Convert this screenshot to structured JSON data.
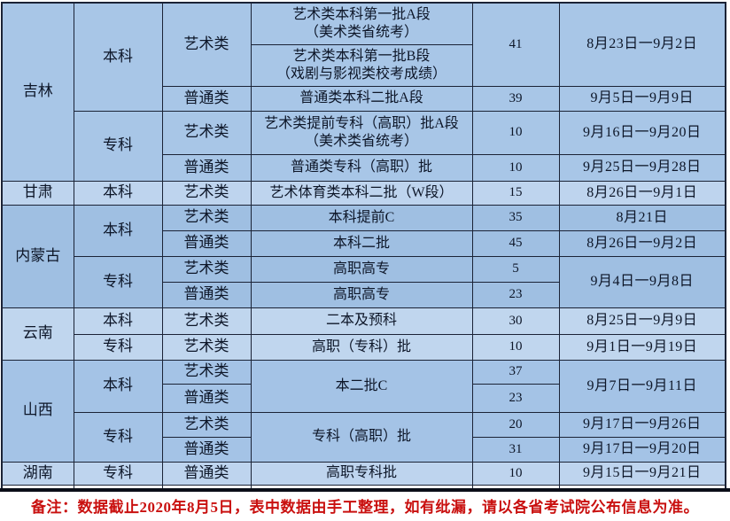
{
  "colors": {
    "jilin": "#a8c6e7",
    "gansu": "#bed4ee",
    "neimenggu": "#9fbfe2",
    "yunnan": "#c0d6ee",
    "shanxi": "#a4c3e6",
    "hunan": "#bed4ee",
    "empty": "#ffffff",
    "border": "#1b2336",
    "text": "#0d1628",
    "note_red": "#c9100f"
  },
  "footer": {
    "note": "备注：数据截止2020年8月5日，表中数据由手工整理，如有纰漏，请以各省考试院公布信息为准。"
  },
  "table": {
    "columns": [
      "province",
      "level",
      "category",
      "batch",
      "count",
      "dates"
    ],
    "rows": [
      {
        "block": "jilin",
        "cells": [
          {
            "col": "province",
            "text": "吉林",
            "rs": 5
          },
          {
            "col": "level",
            "text": "本科",
            "rs": 3
          },
          {
            "col": "category",
            "text": "艺术类",
            "rs": 2
          },
          {
            "col": "batch",
            "text": "艺术类本科第一批A段\n（美术类省统考）"
          },
          {
            "col": "count",
            "text": "41",
            "rs": 2
          },
          {
            "col": "dates",
            "text": "8月23日一9月2日",
            "rs": 2
          }
        ]
      },
      {
        "block": "jilin",
        "cells": [
          {
            "col": "batch",
            "text": "艺术类本科第一批B段\n（戏剧与影视类校考成绩）"
          }
        ]
      },
      {
        "block": "jilin",
        "cells": [
          {
            "col": "category",
            "text": "普通类"
          },
          {
            "col": "batch",
            "text": "普通类本科二批A段"
          },
          {
            "col": "count",
            "text": "39"
          },
          {
            "col": "dates",
            "text": "9月5日一9月9日"
          }
        ]
      },
      {
        "block": "jilin",
        "cells": [
          {
            "col": "level",
            "text": "专科",
            "rs": 2
          },
          {
            "col": "category",
            "text": "艺术类"
          },
          {
            "col": "batch",
            "text": "艺术类提前专科（高职）批A段\n（美术类省统考）"
          },
          {
            "col": "count",
            "text": "10"
          },
          {
            "col": "dates",
            "text": "9月16日一9月20日"
          }
        ]
      },
      {
        "block": "jilin",
        "cells": [
          {
            "col": "category",
            "text": "普通类"
          },
          {
            "col": "batch",
            "text": "普通类专科（高职）批"
          },
          {
            "col": "count",
            "text": "10"
          },
          {
            "col": "dates",
            "text": "9月25日一9月28日"
          }
        ]
      },
      {
        "block": "gansu",
        "cells": [
          {
            "col": "province",
            "text": "甘肃"
          },
          {
            "col": "level",
            "text": "本科"
          },
          {
            "col": "category",
            "text": "艺术类"
          },
          {
            "col": "batch",
            "text": "艺术体育类本科二批（W段）"
          },
          {
            "col": "count",
            "text": "15"
          },
          {
            "col": "dates",
            "text": "8月26日一9月1日"
          }
        ]
      },
      {
        "block": "neimenggu",
        "cells": [
          {
            "col": "province",
            "text": "内蒙古",
            "rs": 4
          },
          {
            "col": "level",
            "text": "本科",
            "rs": 2
          },
          {
            "col": "category",
            "text": "艺术类"
          },
          {
            "col": "batch",
            "text": "本科提前C"
          },
          {
            "col": "count",
            "text": "35"
          },
          {
            "col": "dates",
            "text": "8月21日"
          }
        ]
      },
      {
        "block": "neimenggu",
        "cells": [
          {
            "col": "category",
            "text": "普通类"
          },
          {
            "col": "batch",
            "text": "本科二批"
          },
          {
            "col": "count",
            "text": "45"
          },
          {
            "col": "dates",
            "text": "8月26日一9月2日"
          }
        ]
      },
      {
        "block": "neimenggu",
        "cells": [
          {
            "col": "level",
            "text": "专科",
            "rs": 2
          },
          {
            "col": "category",
            "text": "艺术类"
          },
          {
            "col": "batch",
            "text": "高职高专"
          },
          {
            "col": "count",
            "text": "5"
          },
          {
            "col": "dates",
            "text": "9月4日一9月8日",
            "rs": 2
          }
        ]
      },
      {
        "block": "neimenggu",
        "cells": [
          {
            "col": "category",
            "text": "普通类"
          },
          {
            "col": "batch",
            "text": "高职高专"
          },
          {
            "col": "count",
            "text": "23"
          }
        ]
      },
      {
        "block": "yunnan",
        "cells": [
          {
            "col": "province",
            "text": "云南",
            "rs": 2
          },
          {
            "col": "level",
            "text": "本科"
          },
          {
            "col": "category",
            "text": "艺术类"
          },
          {
            "col": "batch",
            "text": "二本及预科"
          },
          {
            "col": "count",
            "text": "30"
          },
          {
            "col": "dates",
            "text": "8月25日一9月9日"
          }
        ]
      },
      {
        "block": "yunnan",
        "cells": [
          {
            "col": "level",
            "text": "专科"
          },
          {
            "col": "category",
            "text": "艺术类"
          },
          {
            "col": "batch",
            "text": "高职（专科）批"
          },
          {
            "col": "count",
            "text": "10"
          },
          {
            "col": "dates",
            "text": "9月1日一9月19日"
          }
        ]
      },
      {
        "block": "shanxi",
        "cells": [
          {
            "col": "province",
            "text": "山西",
            "rs": 4
          },
          {
            "col": "level",
            "text": "本科",
            "rs": 2
          },
          {
            "col": "category",
            "text": "艺术类"
          },
          {
            "col": "batch",
            "text": "本二批C",
            "rs": 2
          },
          {
            "col": "count",
            "text": "37"
          },
          {
            "col": "dates",
            "text": "9月7日一9月11日",
            "rs": 2
          }
        ]
      },
      {
        "block": "shanxi",
        "cells": [
          {
            "col": "category",
            "text": "普通类"
          },
          {
            "col": "count",
            "text": "23"
          }
        ]
      },
      {
        "block": "shanxi",
        "cells": [
          {
            "col": "level",
            "text": "专科",
            "rs": 2
          },
          {
            "col": "category",
            "text": "艺术类"
          },
          {
            "col": "batch",
            "text": "专科（高职）批",
            "rs": 2
          },
          {
            "col": "count",
            "text": "20"
          },
          {
            "col": "dates",
            "text": "9月17日一9月26日"
          }
        ]
      },
      {
        "block": "shanxi",
        "cells": [
          {
            "col": "category",
            "text": "普通类"
          },
          {
            "col": "count",
            "text": "31"
          },
          {
            "col": "dates",
            "text": "9月17日一9月20日"
          }
        ]
      },
      {
        "block": "hunan",
        "cells": [
          {
            "col": "province",
            "text": "湖南"
          },
          {
            "col": "level",
            "text": "专科"
          },
          {
            "col": "category",
            "text": "普通类"
          },
          {
            "col": "batch",
            "text": "高职专科批"
          },
          {
            "col": "count",
            "text": "10"
          },
          {
            "col": "dates",
            "text": "9月15日一9月21日"
          }
        ]
      },
      {
        "block": "empty",
        "cells": [
          {
            "col": "spacer",
            "text": ""
          },
          {
            "col": "spacer",
            "text": ""
          },
          {
            "col": "spacer",
            "text": ""
          },
          {
            "col": "spacer",
            "text": ""
          },
          {
            "col": "spacer",
            "text": ""
          },
          {
            "col": "spacer",
            "text": ""
          }
        ]
      }
    ]
  }
}
